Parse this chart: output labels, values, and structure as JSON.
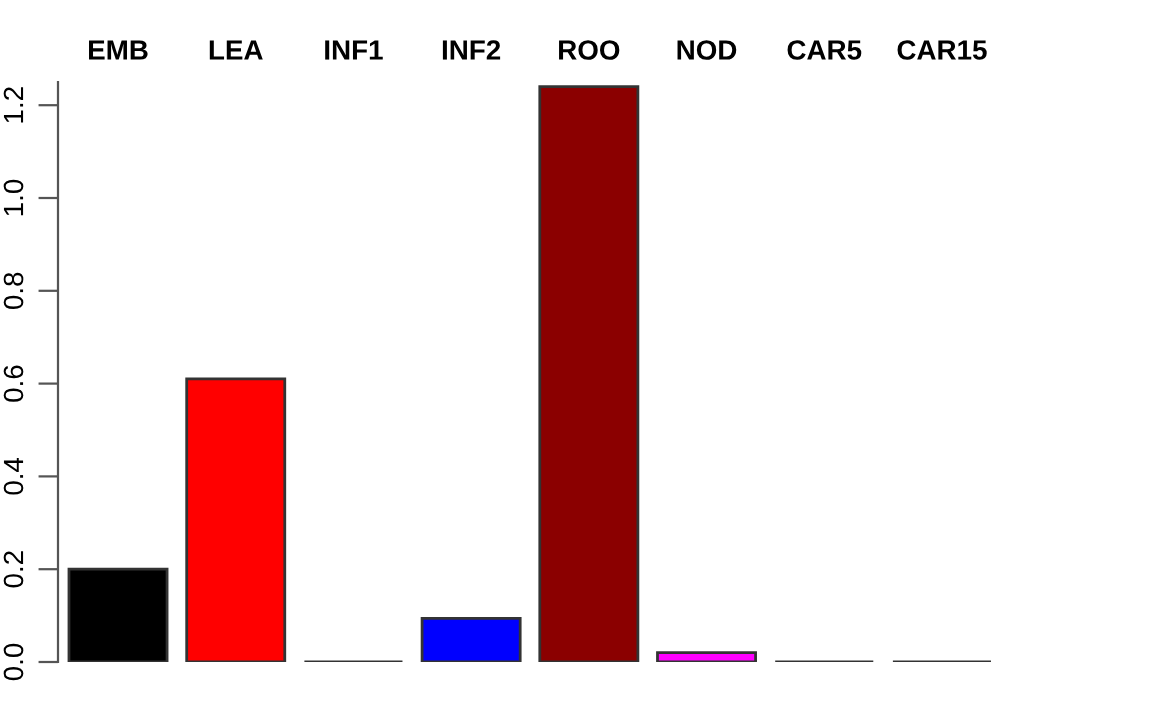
{
  "chart_data": {
    "type": "bar",
    "categories": [
      "EMB",
      "LEA",
      "INF1",
      "INF2",
      "ROO",
      "NOD",
      "CAR5",
      "CAR15"
    ],
    "values": [
      0.2,
      0.61,
      0,
      0.094,
      1.24,
      0.02,
      0,
      0
    ],
    "colors": [
      "#000000",
      "#ff0000",
      "#333333",
      "#0000ff",
      "#8b0000",
      "#ff00ff",
      "#333333",
      "#333333"
    ],
    "ylim": [
      0,
      1.25
    ],
    "yticks": [
      {
        "value": 0,
        "label": "0.0"
      },
      {
        "value": 0.2,
        "label": "0.2"
      },
      {
        "value": 0.4,
        "label": "0.4"
      },
      {
        "value": 0.6,
        "label": "0.6"
      },
      {
        "value": 0.8,
        "label": "0.8"
      },
      {
        "value": 1.0,
        "label": "1.0"
      },
      {
        "value": 1.2,
        "label": "1.2"
      }
    ],
    "grid": false
  }
}
